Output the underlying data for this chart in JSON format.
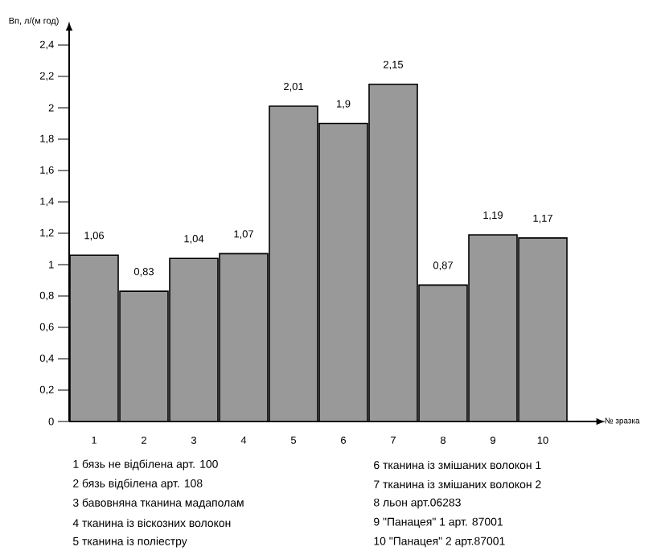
{
  "chart_data": {
    "type": "bar",
    "xlabel": "№ зразка",
    "ylabel": "Вп, л/(м год)",
    "categories": [
      "1",
      "2",
      "3",
      "4",
      "5",
      "6",
      "7",
      "8",
      "9",
      "10"
    ],
    "values": [
      1.06,
      0.83,
      1.04,
      1.07,
      2.01,
      1.9,
      2.15,
      0.87,
      1.19,
      1.17
    ],
    "value_labels": [
      "1,06",
      "0,83",
      "1,04",
      "1,07",
      "2,01",
      "1,9",
      "2,15",
      "0,87",
      "1,19",
      "1,17"
    ],
    "color": "#999999",
    "ylim": [
      0,
      2.5
    ],
    "yticks": [
      {
        "value": 0,
        "label": "0"
      },
      {
        "value": 0.2,
        "label": "0,2"
      },
      {
        "value": 0.4,
        "label": "0,4"
      },
      {
        "value": 0.6,
        "label": "0,6"
      },
      {
        "value": 0.8,
        "label": "0,8"
      },
      {
        "value": 1,
        "label": "1"
      },
      {
        "value": 1.2,
        "label": "1,2"
      },
      {
        "value": 1.4,
        "label": "1,4"
      },
      {
        "value": 1.6,
        "label": "1,6"
      },
      {
        "value": 1.8,
        "label": "1,8"
      },
      {
        "value": 2,
        "label": "2"
      },
      {
        "value": 2.2,
        "label": "2,2"
      },
      {
        "value": 2.4,
        "label": "2,4"
      }
    ],
    "annotations": [
      "1 бязь не відбілена арт. 100",
      "2 бязь відбілена арт. 108",
      "3 бавовняна тканина мадаполам",
      "4 тканина із віскозних волокон",
      "5 тканина із поліестру",
      "6 тканина із змішаних волокон 1",
      "7 тканина із змішаних волокон 2",
      "8 льон арт.06283",
      "9 \"Панацея\" 1 арт. 87001",
      "10 \"Панацея\" 2 арт.87001"
    ]
  }
}
